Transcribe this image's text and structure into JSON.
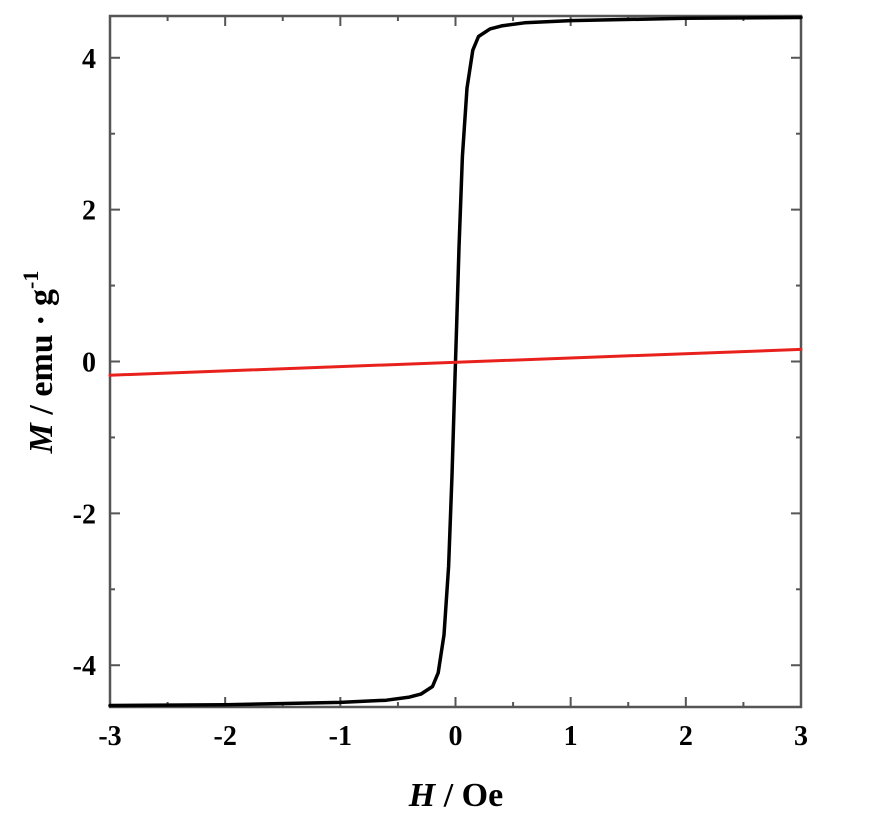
{
  "chart_data": {
    "type": "line",
    "xlim": [
      -3,
      3
    ],
    "ylim": [
      -4.55,
      4.55
    ],
    "xticks": [
      -3,
      -2,
      -1,
      0,
      1,
      2,
      3
    ],
    "xtick_labels": [
      "-3",
      "-2",
      "-1",
      "0",
      "1",
      "2",
      "3"
    ],
    "yticks": [
      -4,
      -2,
      0,
      2,
      4
    ],
    "ytick_labels": [
      "-4",
      "-2",
      "0",
      "2",
      "4"
    ],
    "xlabel": {
      "symbol": "H",
      "rest": " / Oe"
    },
    "ylabel": {
      "symbol": "M",
      "rest": " / emu · g",
      "sup": "-1"
    },
    "grid": false,
    "series": [
      {
        "color": "#000000",
        "x": [
          -3,
          -2,
          -1,
          -0.6,
          -0.4,
          -0.3,
          -0.2,
          -0.15,
          -0.1,
          -0.06,
          -0.03,
          -0.01,
          0,
          0.01,
          0.03,
          0.06,
          0.1,
          0.15,
          0.2,
          0.3,
          0.4,
          0.6,
          1,
          2,
          3
        ],
        "y": [
          -4.53,
          -4.52,
          -4.49,
          -4.46,
          -4.42,
          -4.38,
          -4.28,
          -4.1,
          -3.6,
          -2.7,
          -1.5,
          -0.5,
          0,
          0.5,
          1.5,
          2.7,
          3.6,
          4.1,
          4.28,
          4.38,
          4.42,
          4.46,
          4.49,
          4.52,
          4.53
        ]
      },
      {
        "color": "#e8211d",
        "x": [
          -3,
          3
        ],
        "y": [
          -0.18,
          0.16
        ]
      }
    ]
  }
}
